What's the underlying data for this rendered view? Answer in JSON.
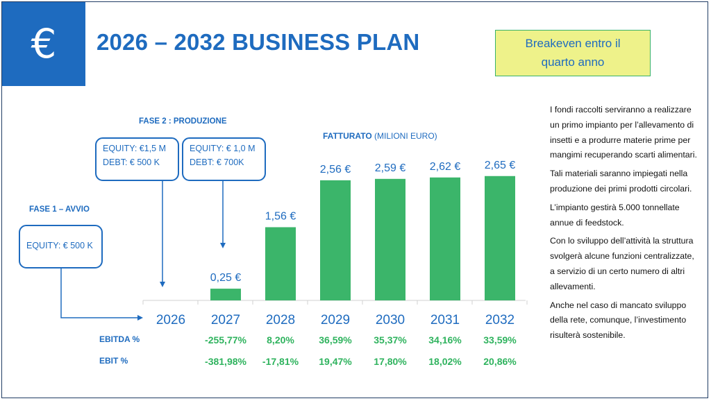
{
  "header": {
    "euro_symbol": "€",
    "title": "2026 – 2032 BUSINESS PLAN",
    "breakeven_line1": "Breakeven entro il",
    "breakeven_line2": "quarto anno"
  },
  "phases": {
    "phase1_label": "FASE 1 – AVVIO",
    "phase1_equity": "EQUITY: € 500 K",
    "phase2_label": "FASE 2 : PRODUZIONE",
    "box_a_line1": "EQUITY:  €1,5 M",
    "box_a_line2": "DEBT:  € 500 K",
    "box_b_line1": "EQUITY: € 1,0 M",
    "box_b_line2": "DEBT: € 700K"
  },
  "side_text": {
    "p1": "I fondi raccolti serviranno a realizzare un primo impianto per l’allevamento di insetti e a produrre materie prime per mangimi recuperando scarti alimentari.",
    "p2": "Tali materiali saranno impiegati nella produzione dei primi prodotti circolari.",
    "p3": "L’impianto gestirà 5.000 tonnellate annue di feedstock.",
    "p4": "Con lo sviluppo dell’attività la struttura  svolgerà alcune funzioni centralizzate, a servizio di un certo numero di altri allevamenti.",
    "p5": "Anche nel caso di mancato sviluppo della rete, comunque, l’investimento risulterà sostenibile."
  },
  "colors": {
    "blue": "#1e6bbf",
    "bar_green": "#3bb56a",
    "pct_green": "#2fb35e",
    "highlight": "#eef28a"
  },
  "chart_data": {
    "type": "bar",
    "title_bold": "FATTURATO",
    "title_rest": " (MILIONI EURO)",
    "categories": [
      "2026",
      "2027",
      "2028",
      "2029",
      "2030",
      "2031",
      "2032"
    ],
    "values": [
      0,
      0.25,
      1.56,
      2.56,
      2.59,
      2.62,
      2.65
    ],
    "value_labels": [
      "",
      "0,25 €",
      "1,56 €",
      "2,56 €",
      "2,59 €",
      "2,62 €",
      "2,65 €"
    ],
    "ylim": [
      0,
      2.75
    ],
    "rows": [
      {
        "label": "EBITDA %",
        "values": [
          "",
          "-255,77%",
          "8,20%",
          "36,59%",
          "35,37%",
          "34,16%",
          "33,59%"
        ]
      },
      {
        "label": "EBIT %",
        "values": [
          "",
          "-381,98%",
          "-17,81%",
          "19,47%",
          "17,80%",
          "18,02%",
          "20,86%"
        ]
      }
    ]
  }
}
